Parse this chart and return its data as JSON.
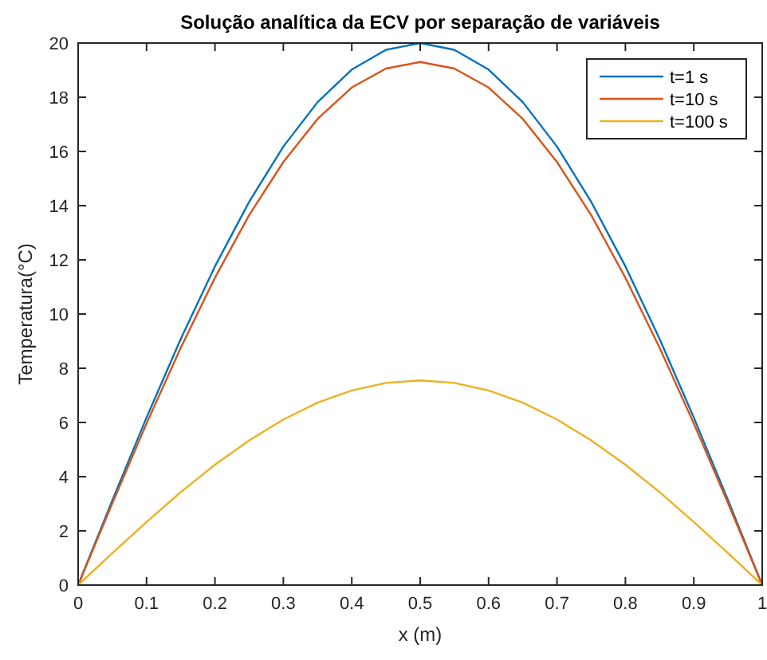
{
  "chart_data": {
    "type": "line",
    "title": "Solução analítica da ECV por  separação de variáveis",
    "xlabel": "x (m)",
    "ylabel": "Temperatura(°C)",
    "x": [
      0,
      0.05,
      0.1,
      0.15,
      0.2,
      0.25,
      0.3,
      0.35,
      0.4,
      0.45,
      0.5,
      0.55,
      0.6,
      0.65,
      0.7,
      0.75,
      0.8,
      0.85,
      0.9,
      0.95,
      1
    ],
    "series": [
      {
        "name": "t=1 s",
        "color": "#0072bd",
        "values": [
          0,
          3.13,
          6.18,
          9.08,
          11.76,
          14.14,
          16.18,
          17.82,
          19.02,
          19.75,
          20,
          19.75,
          19.02,
          17.82,
          16.18,
          14.14,
          11.76,
          9.08,
          6.18,
          3.13,
          0
        ]
      },
      {
        "name": "t=10 s",
        "color": "#d95319",
        "values": [
          0,
          3.02,
          5.96,
          8.76,
          11.34,
          13.65,
          15.61,
          17.2,
          18.36,
          19.06,
          19.3,
          19.06,
          18.36,
          17.2,
          15.61,
          13.65,
          11.34,
          8.76,
          5.96,
          3.02,
          0
        ]
      },
      {
        "name": "t=100 s",
        "color": "#edb120",
        "values": [
          0,
          1.18,
          2.33,
          3.43,
          4.44,
          5.34,
          6.11,
          6.73,
          7.18,
          7.46,
          7.55,
          7.46,
          7.18,
          6.73,
          6.11,
          5.34,
          4.44,
          3.43,
          2.33,
          1.18,
          0
        ]
      }
    ],
    "xlim": [
      0,
      1
    ],
    "xticks": [
      0,
      0.1,
      0.2,
      0.3,
      0.4,
      0.5,
      0.6,
      0.7,
      0.8,
      0.9,
      1
    ],
    "ylim": [
      0,
      20
    ],
    "yticks": [
      0,
      2,
      4,
      6,
      8,
      10,
      12,
      14,
      16,
      18,
      20
    ],
    "grid": false,
    "legend": "top right",
    "marker": "none",
    "line_style": "solid"
  }
}
